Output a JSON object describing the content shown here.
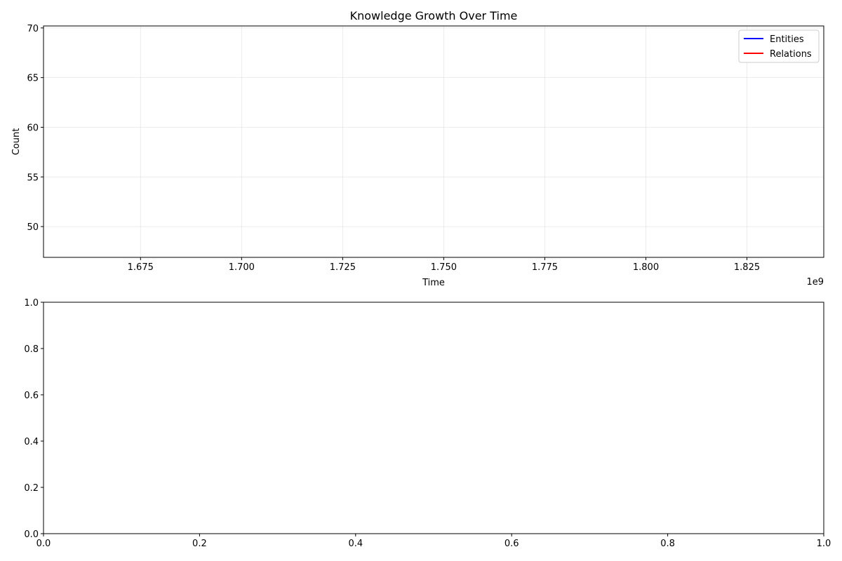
{
  "chart_data": [
    {
      "type": "line",
      "title": "Knowledge Growth Over Time",
      "xlabel": "Time",
      "ylabel": "Count",
      "x_offset_text": "1e9",
      "xlim": [
        1.651,
        1.844
      ],
      "ylim": [
        46.9,
        70.2
      ],
      "x_ticks": [
        1.675,
        1.7,
        1.725,
        1.75,
        1.775,
        1.8,
        1.825
      ],
      "x_tick_labels": [
        "1.675",
        "1.700",
        "1.725",
        "1.750",
        "1.775",
        "1.800",
        "1.825"
      ],
      "y_ticks": [
        50,
        55,
        60,
        65,
        70
      ],
      "y_tick_labels": [
        "50",
        "55",
        "60",
        "65",
        "70"
      ],
      "grid": true,
      "legend_placement": "top-right",
      "series": [
        {
          "name": "Entities",
          "color": "#0000ff",
          "x": [],
          "values": []
        },
        {
          "name": "Relations",
          "color": "#ff0000",
          "x": [],
          "values": []
        }
      ]
    },
    {
      "type": "line",
      "title": "",
      "xlabel": "",
      "ylabel": "",
      "xlim": [
        0,
        1
      ],
      "ylim": [
        0,
        1
      ],
      "x_ticks": [
        0,
        0.2,
        0.4,
        0.6,
        0.8,
        1.0
      ],
      "x_tick_labels": [
        "0.0",
        "0.2",
        "0.4",
        "0.6",
        "0.8",
        "1.0"
      ],
      "y_ticks": [
        0,
        0.2,
        0.4,
        0.6,
        0.8,
        1.0
      ],
      "y_tick_labels": [
        "0.0",
        "0.2",
        "0.4",
        "0.6",
        "0.8",
        "1.0"
      ],
      "grid": false,
      "series": []
    }
  ]
}
